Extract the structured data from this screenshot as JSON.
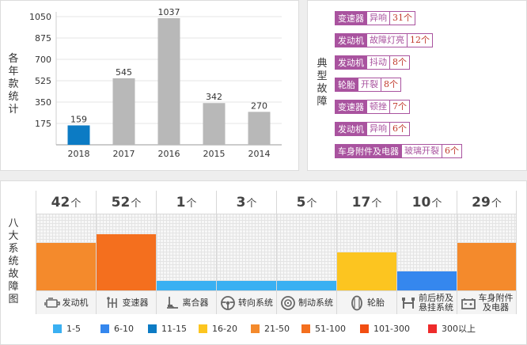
{
  "yearly": {
    "ylabel": "各年款统计",
    "chart_data": {
      "type": "bar",
      "categories": [
        "2018",
        "2017",
        "2016",
        "2015",
        "2014"
      ],
      "values": [
        159,
        545,
        1037,
        342,
        270
      ],
      "yticks": [
        175,
        350,
        525,
        700,
        875,
        1050
      ],
      "ylim": [
        0,
        1050
      ],
      "bar_colors": [
        "#0c7bc4",
        "#b8b8b8",
        "#b8b8b8",
        "#b8b8b8",
        "#b8b8b8"
      ]
    }
  },
  "faults": {
    "label": "典型故障",
    "items": [
      {
        "category": "变速器",
        "desc": "异响",
        "count": "31个"
      },
      {
        "category": "发动机",
        "desc": "故障灯亮",
        "count": "12个"
      },
      {
        "category": "发动机",
        "desc": "抖动",
        "count": "8个"
      },
      {
        "category": "轮胎",
        "desc": "开裂",
        "count": "8个"
      },
      {
        "category": "变速器",
        "desc": "顿挫",
        "count": "7个"
      },
      {
        "category": "发动机",
        "desc": "异响",
        "count": "6个"
      },
      {
        "category": "车身附件及电器",
        "desc": "玻璃开裂",
        "count": "6个"
      }
    ]
  },
  "systems": {
    "label": "八大系统故障图",
    "unit": "个",
    "chart_data": {
      "type": "bar",
      "categories": [
        "发动机",
        "变速器",
        "离合器",
        "转向系统",
        "制动系统",
        "轮胎",
        "前后桥及悬挂系统",
        "车身附件及电器"
      ],
      "values": [
        42,
        52,
        1,
        3,
        5,
        17,
        10,
        29
      ],
      "level_fraction": [
        0.62,
        0.74,
        0.12,
        0.12,
        0.12,
        0.5,
        0.25,
        0.62
      ],
      "colors": [
        "#f48a2c",
        "#f46f1e",
        "#3ab0f2",
        "#3ab0f2",
        "#3ab0f2",
        "#fcc520",
        "#3587ee",
        "#f48a2c"
      ]
    },
    "items": [
      {
        "value": "42",
        "label": "发动机",
        "icon": "engine-icon"
      },
      {
        "value": "52",
        "label": "变速器",
        "icon": "gearshift-icon"
      },
      {
        "value": "1",
        "label": "离合器",
        "icon": "clutch-pedal-icon"
      },
      {
        "value": "3",
        "label": "转向系统",
        "icon": "steering-wheel-icon"
      },
      {
        "value": "5",
        "label": "制动系统",
        "icon": "brake-disc-icon"
      },
      {
        "value": "17",
        "label": "轮胎",
        "icon": "tire-icon"
      },
      {
        "value": "10",
        "label": "前后桥及悬挂系统",
        "label_line1": "前后桥及",
        "label_line2": "悬挂系统",
        "icon": "axle-icon"
      },
      {
        "value": "29",
        "label": "车身附件及电器",
        "label_line1": "车身附件",
        "label_line2": "及电器",
        "icon": "battery-icon"
      }
    ],
    "legend": [
      {
        "label": "1-5",
        "color": "#3ab0f2"
      },
      {
        "label": "6-10",
        "color": "#3587ee"
      },
      {
        "label": "11-15",
        "color": "#0c7bc4"
      },
      {
        "label": "16-20",
        "color": "#fcc520"
      },
      {
        "label": "21-50",
        "color": "#f48a2c"
      },
      {
        "label": "51-100",
        "color": "#f46f1e"
      },
      {
        "label": "101-300",
        "color": "#f24e12"
      },
      {
        "label": "300以上",
        "color": "#ee2b2b"
      }
    ]
  }
}
